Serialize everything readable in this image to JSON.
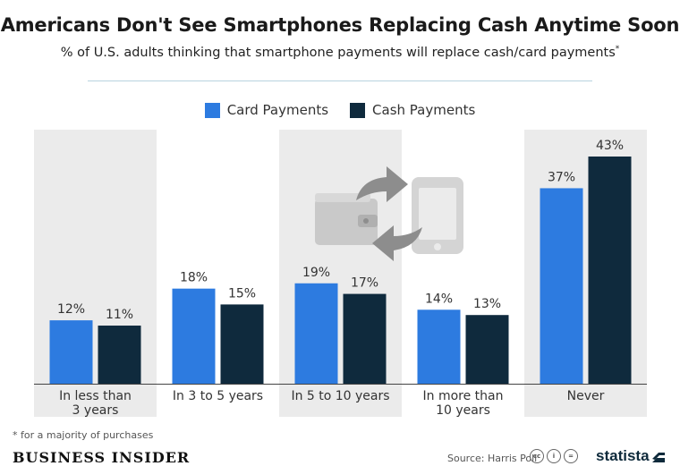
{
  "title": "Americans Don't See Smartphones Replacing Cash Anytime Soon",
  "subtitle": "% of U.S. adults thinking that smartphone payments will replace cash/card payments",
  "subtitle_mark": "*",
  "legend": [
    {
      "label": "Card Payments",
      "color": "#2d7be0"
    },
    {
      "label": "Cash Payments",
      "color": "#0f2a3d"
    }
  ],
  "chart_data": {
    "type": "bar",
    "categories": [
      "In less than 3 years",
      "In 3 to 5 years",
      "In 5 to 10 years",
      "In more than 10 years",
      "Never"
    ],
    "category_lines": [
      [
        "In less than",
        "3 years"
      ],
      [
        "In 3 to 5 years"
      ],
      [
        "In 5 to 10 years"
      ],
      [
        "In more than",
        "10 years"
      ],
      [
        "Never"
      ]
    ],
    "series": [
      {
        "name": "Card Payments",
        "color": "#2d7be0",
        "values": [
          12,
          18,
          19,
          14,
          37
        ],
        "labels": [
          "12%",
          "18%",
          "19%",
          "14%",
          "37%"
        ]
      },
      {
        "name": "Cash Payments",
        "color": "#0f2a3d",
        "values": [
          11,
          15,
          17,
          13,
          43
        ],
        "labels": [
          "11%",
          "15%",
          "17%",
          "13%",
          "43%"
        ]
      }
    ],
    "ylim": [
      0,
      50
    ],
    "shaded_categories": [
      0,
      2,
      4
    ],
    "title": "Americans Don't See Smartphones Replacing Cash Anytime Soon",
    "xlabel": "",
    "ylabel": ""
  },
  "illustration": {
    "icons": [
      "wallet-icon",
      "smartphone-icon",
      "exchange-arrow-icon"
    ]
  },
  "footnote": "* for a majority of purchases",
  "branding": {
    "left": "BUSINESS INSIDER",
    "source": "Source: Harris Poll",
    "right": "statista"
  }
}
